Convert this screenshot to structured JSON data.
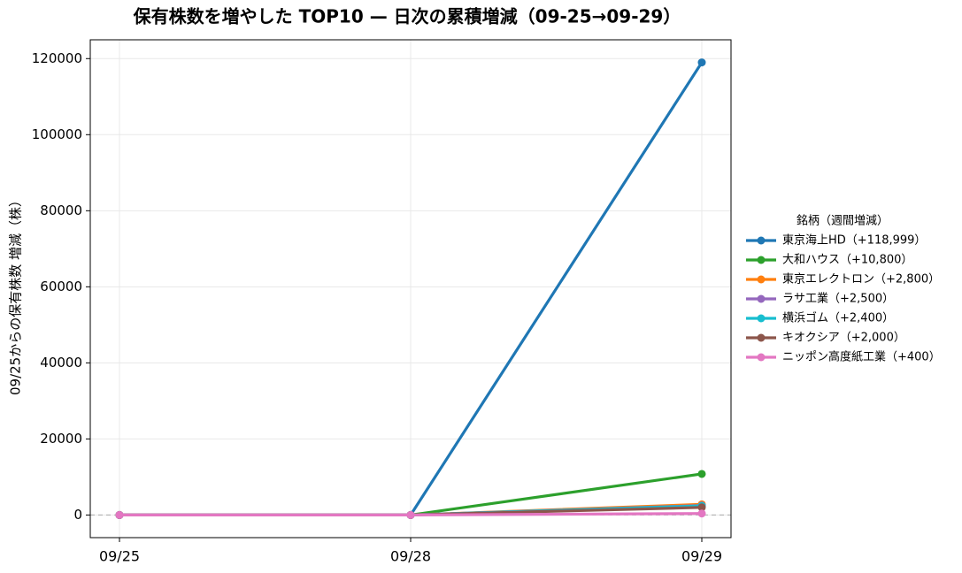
{
  "chart_data": {
    "type": "line",
    "title": "保有株数を増やした TOP10 — 日次の累積増減（09-25→09-29）",
    "y_label": "09/25からの保有株数 増減（株）",
    "categories": [
      "09/25",
      "09/28",
      "09/29"
    ],
    "ylim": [
      -5950,
      124949
    ],
    "yticks": [
      0,
      20000,
      40000,
      60000,
      80000,
      100000,
      120000
    ],
    "grid": true,
    "hline": 0,
    "legend_title": "銘柄（週間増減）",
    "legend": "center right outside",
    "series": [
      {
        "name": "東京海上HD（+118,999）",
        "color": "#1f77b4",
        "values": [
          0,
          0,
          118999
        ]
      },
      {
        "name": "大和ハウス（+10,800）",
        "color": "#2ca02c",
        "values": [
          0,
          0,
          10800
        ]
      },
      {
        "name": "東京エレクトロン（+2,800）",
        "color": "#ff7f0e",
        "values": [
          0,
          0,
          2800
        ]
      },
      {
        "name": "ラサ工業（+2,500）",
        "color": "#9467bd",
        "values": [
          0,
          0,
          2500
        ]
      },
      {
        "name": "横浜ゴム（+2,400）",
        "color": "#17becf",
        "values": [
          0,
          0,
          2400
        ]
      },
      {
        "name": "キオクシア（+2,000）",
        "color": "#8c564b",
        "values": [
          0,
          0,
          2000
        ]
      },
      {
        "name": "ニッポン高度紙工業（+400）",
        "color": "#e377c2",
        "values": [
          0,
          0,
          400
        ]
      }
    ]
  }
}
